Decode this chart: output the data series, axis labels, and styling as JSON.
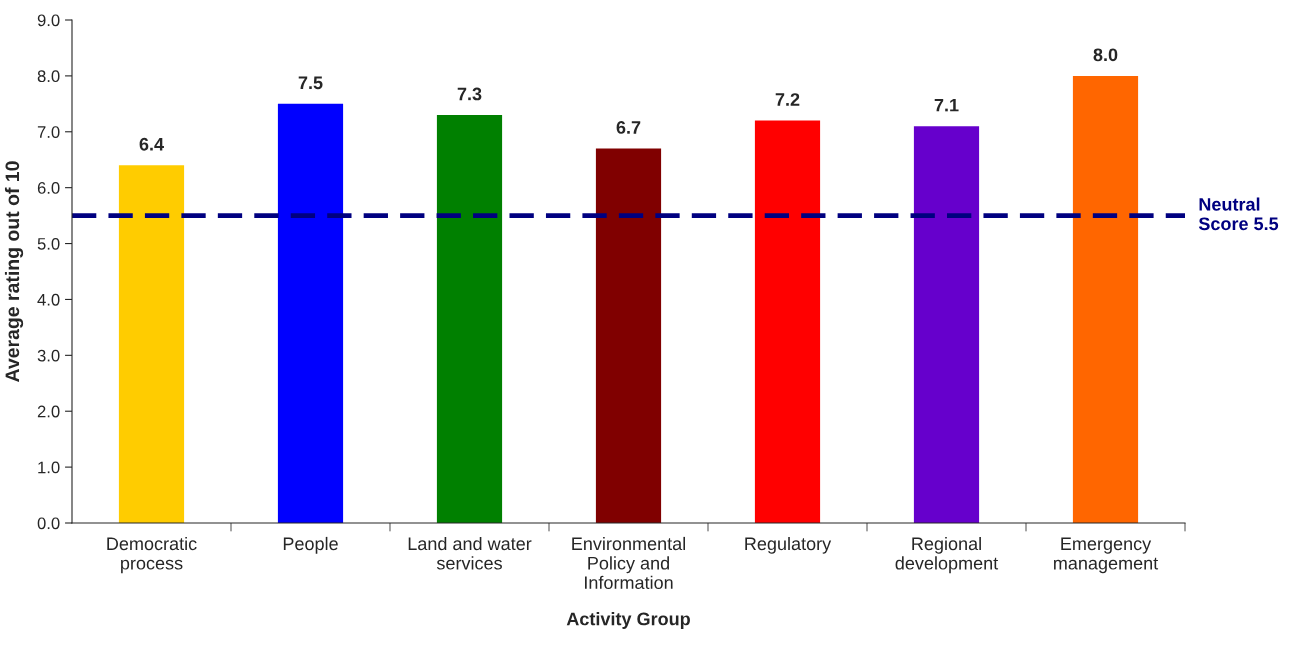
{
  "chart_data": {
    "type": "bar",
    "xlabel": "Activity Group",
    "ylabel": "Average rating out of 10",
    "categories": [
      "Democratic\nprocess",
      "People",
      "Land and water\nservices",
      "Environmental\nPolicy and\nInformation",
      "Regulatory",
      "Regional\ndevelopment",
      "Emergency\nmanagement"
    ],
    "values": [
      6.4,
      7.5,
      7.3,
      6.7,
      7.2,
      7.1,
      8.0
    ],
    "colors": [
      "#ffcc00",
      "#0000ff",
      "#008000",
      "#800000",
      "#ff0000",
      "#6600cc",
      "#ff6600"
    ],
    "value_labels": [
      "6.4",
      "7.5",
      "7.3",
      "6.7",
      "7.2",
      "7.1",
      "8.0"
    ],
    "ylim": [
      0,
      9
    ],
    "yticks": [
      {
        "value": 0,
        "label": "0.0"
      },
      {
        "value": 1,
        "label": "1.0"
      },
      {
        "value": 2,
        "label": "2.0"
      },
      {
        "value": 3,
        "label": "3.0"
      },
      {
        "value": 4,
        "label": "4.0"
      },
      {
        "value": 5,
        "label": "5.0"
      },
      {
        "value": 6,
        "label": "6.0"
      },
      {
        "value": 7,
        "label": "7.0"
      },
      {
        "value": 8,
        "label": "8.0"
      },
      {
        "value": 9,
        "label": "9.0"
      }
    ],
    "ref_lines": [
      {
        "axis": "y",
        "value": 5.5,
        "label": "Neutral\nScore 5.5",
        "color": "#000080",
        "line_style": "dashed"
      }
    ],
    "grid": false
  }
}
